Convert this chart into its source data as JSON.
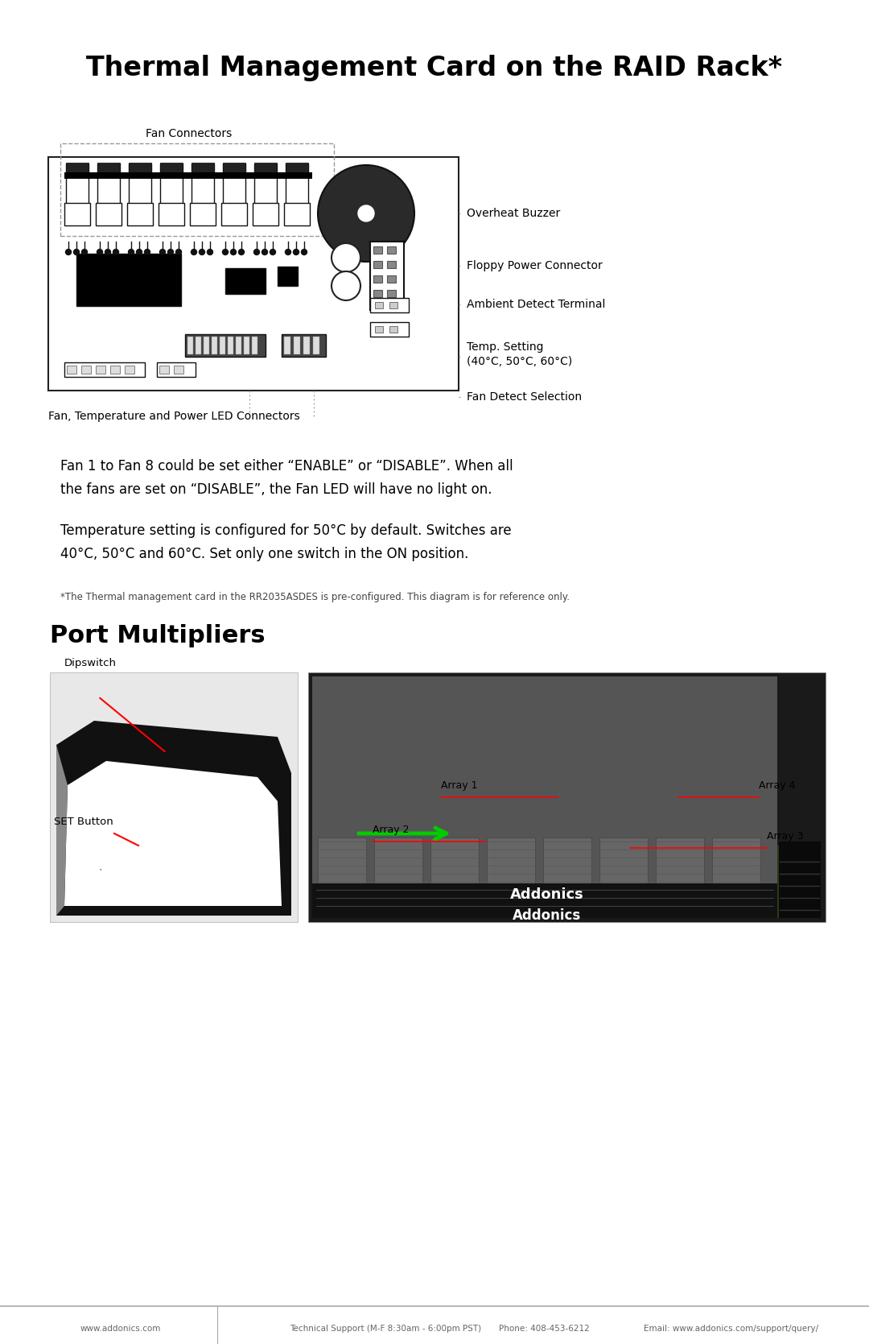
{
  "title": "Thermal Management Card on the RAID Rack*",
  "bg_color": "#ffffff",
  "text_color": "#000000",
  "diagram_labels": {
    "fan_connectors": "Fan Connectors",
    "overheat_buzzer": "Overheat Buzzer",
    "floppy_power": "Floppy Power Connector",
    "ambient_detect": "Ambient Detect Terminal",
    "temp_setting": "Temp. Setting\n(40°C, 50°C, 60°C)",
    "fan_detect": "Fan Detect Selection",
    "fan_led": "Fan, Temperature and Power LED Connectors"
  },
  "body_text1": "Fan 1 to Fan 8 could be set either “ENABLE” or “DISABLE”. When all\nthe fans are set on “DISABLE”, the Fan LED will have no light on.",
  "body_text2": "Temperature setting is configured for 50°C by default. Switches are\n40°C, 50°C and 60°C. Set only one switch in the ON position.",
  "footnote": "*The Thermal management card in the RR2035ASDES is pre-configured. This diagram is for reference only.",
  "port_title": "Port Multipliers",
  "port_labels": {
    "dipswitch": "Dipswitch",
    "set_button": "SET Button",
    "array1": "Array 1",
    "array2": "Array 2",
    "array3": "Array 3",
    "array4": "Array 4"
  },
  "footer_texts": [
    "www.addonics.com",
    "Technical Support (M-F 8:30am - 6:00pm PST)",
    "Phone: 408-453-6212",
    "Email: www.addonics.com/support/query/"
  ]
}
